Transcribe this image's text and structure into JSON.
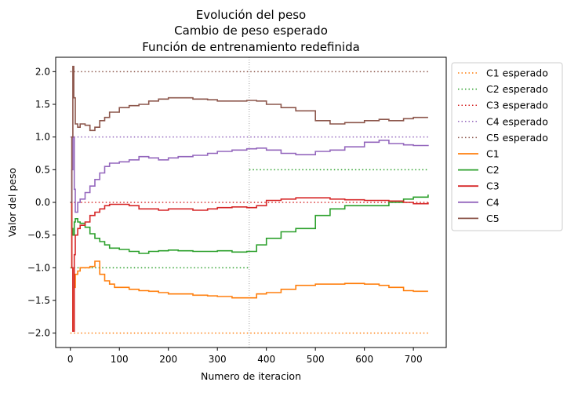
{
  "chart_data": {
    "type": "line",
    "title_lines": [
      "Evolución del peso",
      "Cambio de peso esperado",
      "Función de entrenamiento redefinida"
    ],
    "xlabel": "Numero de iteracion",
    "ylabel": "Valor del peso",
    "xlim": [
      -30,
      767
    ],
    "ylim": [
      -2.22,
      2.22
    ],
    "xticks": [
      0,
      100,
      200,
      300,
      400,
      500,
      600,
      700
    ],
    "yticks": [
      -2.0,
      -1.5,
      -1.0,
      -0.5,
      0.0,
      0.5,
      1.0,
      1.5,
      2.0
    ],
    "ytick_labels": [
      "−2.0",
      "−1.5",
      "−1.0",
      "−0.5",
      "0.0",
      "0.5",
      "1.0",
      "1.5",
      "2.0"
    ],
    "change_iteration": 365,
    "legend_position": "outside-right-top",
    "expected": [
      {
        "name": "C1 esperado",
        "color": "#ff7f0e",
        "segments": [
          [
            0,
            730,
            -2.0
          ]
        ]
      },
      {
        "name": "C2 esperado",
        "color": "#2ca02c",
        "segments": [
          [
            0,
            365,
            -1.0
          ],
          [
            365,
            730,
            0.5
          ]
        ]
      },
      {
        "name": "C3 esperado",
        "color": "#d62728",
        "segments": [
          [
            0,
            730,
            0.0
          ]
        ]
      },
      {
        "name": "C4 esperado",
        "color": "#9467bd",
        "segments": [
          [
            0,
            730,
            1.0
          ]
        ]
      },
      {
        "name": "C5 esperado",
        "color": "#8c564b",
        "segments": [
          [
            0,
            730,
            2.0
          ]
        ]
      }
    ],
    "series": [
      {
        "name": "C1",
        "color": "#ff7f0e",
        "x": [
          0,
          3,
          5,
          8,
          10,
          15,
          20,
          30,
          40,
          50,
          60,
          70,
          80,
          90,
          100,
          120,
          140,
          160,
          180,
          200,
          220,
          250,
          280,
          300,
          330,
          360,
          380,
          400,
          430,
          460,
          500,
          530,
          560,
          600,
          630,
          650,
          680,
          700,
          730
        ],
        "y": [
          0.0,
          -1.0,
          -1.97,
          -1.3,
          -1.1,
          -1.05,
          -1.0,
          -1.0,
          -0.98,
          -0.9,
          -1.1,
          -1.2,
          -1.25,
          -1.3,
          -1.3,
          -1.33,
          -1.35,
          -1.36,
          -1.38,
          -1.4,
          -1.4,
          -1.42,
          -1.43,
          -1.44,
          -1.46,
          -1.46,
          -1.4,
          -1.38,
          -1.33,
          -1.27,
          -1.25,
          -1.25,
          -1.24,
          -1.25,
          -1.27,
          -1.3,
          -1.35,
          -1.36,
          -1.36
        ]
      },
      {
        "name": "C2",
        "color": "#2ca02c",
        "x": [
          0,
          3,
          5,
          8,
          10,
          15,
          20,
          30,
          40,
          50,
          60,
          70,
          80,
          100,
          120,
          140,
          160,
          180,
          200,
          220,
          250,
          280,
          300,
          330,
          360,
          380,
          400,
          430,
          460,
          500,
          530,
          560,
          600,
          630,
          650,
          680,
          700,
          730
        ],
        "y": [
          0.0,
          -0.4,
          -0.5,
          -0.3,
          -0.25,
          -0.3,
          -0.32,
          -0.38,
          -0.48,
          -0.55,
          -0.6,
          -0.65,
          -0.7,
          -0.72,
          -0.75,
          -0.78,
          -0.75,
          -0.74,
          -0.73,
          -0.74,
          -0.75,
          -0.75,
          -0.74,
          -0.76,
          -0.75,
          -0.65,
          -0.55,
          -0.45,
          -0.4,
          -0.2,
          -0.1,
          -0.05,
          -0.05,
          -0.05,
          0.0,
          0.05,
          0.08,
          0.12
        ]
      },
      {
        "name": "C3",
        "color": "#d62728",
        "x": [
          0,
          3,
          5,
          8,
          10,
          15,
          20,
          30,
          40,
          50,
          60,
          70,
          80,
          100,
          120,
          140,
          160,
          180,
          200,
          220,
          250,
          280,
          300,
          330,
          360,
          380,
          400,
          430,
          460,
          500,
          530,
          560,
          600,
          630,
          650,
          680,
          700,
          730
        ],
        "y": [
          0.0,
          -1.0,
          -1.97,
          -0.8,
          -0.5,
          -0.4,
          -0.35,
          -0.3,
          -0.2,
          -0.15,
          -0.1,
          -0.05,
          -0.03,
          -0.03,
          -0.05,
          -0.1,
          -0.1,
          -0.12,
          -0.1,
          -0.1,
          -0.12,
          -0.1,
          -0.08,
          -0.07,
          -0.08,
          -0.05,
          0.03,
          0.05,
          0.07,
          0.07,
          0.05,
          0.04,
          0.03,
          0.03,
          0.02,
          0.0,
          -0.02,
          0.0
        ]
      },
      {
        "name": "C4",
        "color": "#9467bd",
        "x": [
          0,
          3,
          5,
          8,
          10,
          15,
          20,
          30,
          40,
          50,
          60,
          70,
          80,
          100,
          120,
          140,
          160,
          180,
          200,
          220,
          250,
          280,
          300,
          330,
          360,
          380,
          400,
          430,
          460,
          500,
          530,
          560,
          600,
          630,
          650,
          680,
          700,
          730
        ],
        "y": [
          0.0,
          0.5,
          1.0,
          0.2,
          -0.15,
          0.0,
          0.05,
          0.15,
          0.25,
          0.35,
          0.45,
          0.55,
          0.6,
          0.62,
          0.65,
          0.7,
          0.68,
          0.65,
          0.68,
          0.7,
          0.72,
          0.75,
          0.78,
          0.8,
          0.82,
          0.83,
          0.8,
          0.75,
          0.73,
          0.78,
          0.8,
          0.85,
          0.92,
          0.95,
          0.9,
          0.88,
          0.87,
          0.88
        ]
      },
      {
        "name": "C5",
        "color": "#8c564b",
        "x": [
          0,
          3,
          5,
          7,
          10,
          15,
          20,
          30,
          40,
          50,
          60,
          70,
          80,
          100,
          120,
          140,
          160,
          180,
          200,
          220,
          250,
          280,
          300,
          330,
          360,
          380,
          400,
          430,
          460,
          500,
          530,
          560,
          600,
          630,
          650,
          680,
          700,
          730
        ],
        "y": [
          0.0,
          1.0,
          2.08,
          1.6,
          1.2,
          1.15,
          1.2,
          1.18,
          1.1,
          1.15,
          1.25,
          1.3,
          1.38,
          1.45,
          1.48,
          1.5,
          1.55,
          1.58,
          1.6,
          1.6,
          1.58,
          1.57,
          1.55,
          1.55,
          1.56,
          1.55,
          1.5,
          1.45,
          1.4,
          1.25,
          1.2,
          1.22,
          1.25,
          1.27,
          1.25,
          1.28,
          1.3,
          1.3
        ]
      }
    ]
  }
}
